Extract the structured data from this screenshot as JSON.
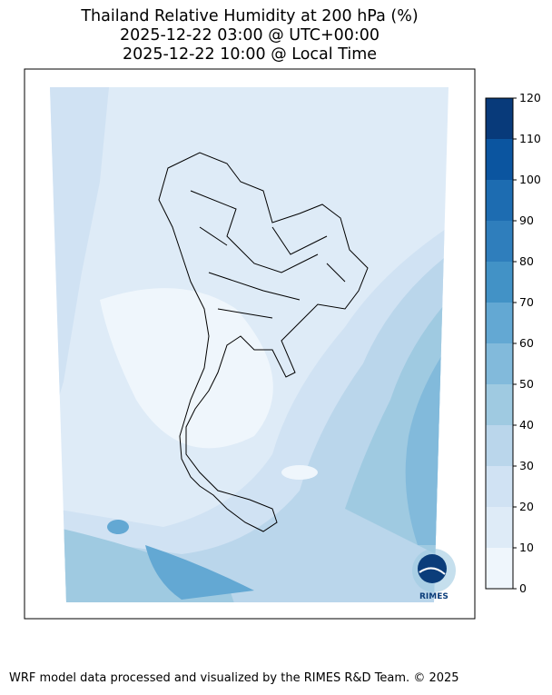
{
  "title": {
    "line1": "Thailand Relative Humidity at 200 hPa (%)",
    "line2": "2025-12-22 03:00 @ UTC+00:00",
    "line3": "2025-12-22 10:00 @ Local Time"
  },
  "colorbar": {
    "ticks": [
      "0",
      "10",
      "20",
      "30",
      "40",
      "50",
      "60",
      "70",
      "80",
      "90",
      "100",
      "110",
      "120"
    ],
    "colors": [
      "#eff6fc",
      "#deebf7",
      "#d0e2f3",
      "#bad6eb",
      "#9fcae1",
      "#82badb",
      "#63a8d3",
      "#4292c6",
      "#2f7ebc",
      "#1d6cb1",
      "#0b55a0",
      "#083a7a"
    ]
  },
  "logo": {
    "text": "RIMES"
  },
  "footer": "WRF model data processed and visualized by the RIMES R&D Team. © 2025"
}
